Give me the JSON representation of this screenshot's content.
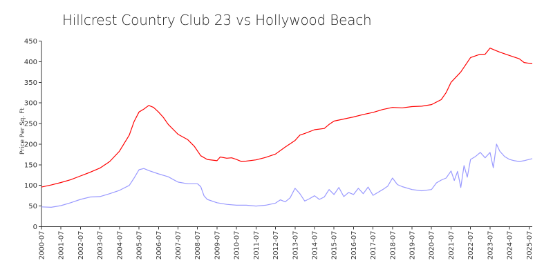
{
  "chart_data": {
    "type": "line",
    "title": "Hillcrest Country Club 23 vs Hollywood Beach",
    "ylabel": "Price Per Sq. Ft",
    "xlabel": "",
    "ylim": [
      0,
      450
    ],
    "yticks": [
      "0",
      "50",
      "100",
      "150",
      "200",
      "250",
      "300",
      "350",
      "400",
      "450"
    ],
    "xlim": [
      "2000-07",
      "2025-09"
    ],
    "xticks": [
      "2000-07",
      "2001-07",
      "2002-07",
      "2003-07",
      "2004-07",
      "2005-07",
      "2006-07",
      "2007-07",
      "2008-07",
      "2009-07",
      "2010-07",
      "2011-07",
      "2012-07",
      "2013-07",
      "2014-07",
      "2015-07",
      "2016-07",
      "2017-07",
      "2018-07",
      "2019-07",
      "2020-07",
      "2021-07",
      "2022-07",
      "2023-07",
      "2024-07",
      "2025-07"
    ],
    "grid": false,
    "legend": "none",
    "series": [
      {
        "color": "#ff0000",
        "points": [
          [
            "2000-07",
            96
          ],
          [
            "2001-01",
            101
          ],
          [
            "2001-07",
            107
          ],
          [
            "2002-01",
            114
          ],
          [
            "2002-07",
            123
          ],
          [
            "2003-01",
            132
          ],
          [
            "2003-07",
            142
          ],
          [
            "2004-01",
            158
          ],
          [
            "2004-07",
            183
          ],
          [
            "2005-01",
            222
          ],
          [
            "2005-04",
            255
          ],
          [
            "2005-07",
            278
          ],
          [
            "2005-10",
            285
          ],
          [
            "2006-01",
            294
          ],
          [
            "2006-04",
            289
          ],
          [
            "2006-07",
            278
          ],
          [
            "2006-10",
            265
          ],
          [
            "2007-01",
            248
          ],
          [
            "2007-07",
            224
          ],
          [
            "2008-01",
            211
          ],
          [
            "2008-05",
            195
          ],
          [
            "2008-09",
            172
          ],
          [
            "2009-01",
            163
          ],
          [
            "2009-07",
            160
          ],
          [
            "2009-09",
            169
          ],
          [
            "2010-01",
            166
          ],
          [
            "2010-04",
            167
          ],
          [
            "2010-07",
            163
          ],
          [
            "2010-10",
            158
          ],
          [
            "2011-01",
            159
          ],
          [
            "2011-07",
            162
          ],
          [
            "2012-01",
            168
          ],
          [
            "2012-07",
            176
          ],
          [
            "2013-01",
            193
          ],
          [
            "2013-07",
            209
          ],
          [
            "2013-10",
            222
          ],
          [
            "2014-01",
            226
          ],
          [
            "2014-07",
            235
          ],
          [
            "2015-01",
            238
          ],
          [
            "2015-04",
            248
          ],
          [
            "2015-07",
            256
          ],
          [
            "2016-01",
            261
          ],
          [
            "2016-07",
            266
          ],
          [
            "2017-01",
            272
          ],
          [
            "2017-07",
            277
          ],
          [
            "2018-01",
            284
          ],
          [
            "2018-07",
            289
          ],
          [
            "2019-01",
            288
          ],
          [
            "2019-07",
            291
          ],
          [
            "2020-01",
            292
          ],
          [
            "2020-07",
            296
          ],
          [
            "2021-01",
            308
          ],
          [
            "2021-04",
            325
          ],
          [
            "2021-07",
            350
          ],
          [
            "2022-01",
            375
          ],
          [
            "2022-07",
            410
          ],
          [
            "2023-01",
            418
          ],
          [
            "2023-04",
            418
          ],
          [
            "2023-07",
            433
          ],
          [
            "2023-10",
            428
          ],
          [
            "2024-01",
            423
          ],
          [
            "2024-07",
            415
          ],
          [
            "2025-01",
            407
          ],
          [
            "2025-04",
            398
          ],
          [
            "2025-09",
            395
          ]
        ]
      },
      {
        "color": "#9999ff",
        "points": [
          [
            "2000-07",
            48
          ],
          [
            "2001-01",
            47
          ],
          [
            "2001-07",
            51
          ],
          [
            "2002-01",
            58
          ],
          [
            "2002-07",
            66
          ],
          [
            "2003-01",
            72
          ],
          [
            "2003-07",
            73
          ],
          [
            "2004-01",
            80
          ],
          [
            "2004-07",
            88
          ],
          [
            "2005-01",
            100
          ],
          [
            "2005-04",
            118
          ],
          [
            "2005-07",
            138
          ],
          [
            "2005-10",
            141
          ],
          [
            "2006-01",
            136
          ],
          [
            "2006-07",
            128
          ],
          [
            "2007-01",
            121
          ],
          [
            "2007-07",
            108
          ],
          [
            "2008-01",
            104
          ],
          [
            "2008-07",
            104
          ],
          [
            "2008-09",
            97
          ],
          [
            "2008-11",
            75
          ],
          [
            "2009-01",
            66
          ],
          [
            "2009-07",
            58
          ],
          [
            "2010-01",
            54
          ],
          [
            "2010-07",
            52
          ],
          [
            "2011-01",
            52
          ],
          [
            "2011-07",
            50
          ],
          [
            "2012-01",
            52
          ],
          [
            "2012-07",
            57
          ],
          [
            "2012-10",
            65
          ],
          [
            "2013-01",
            60
          ],
          [
            "2013-04",
            70
          ],
          [
            "2013-07",
            93
          ],
          [
            "2013-10",
            80
          ],
          [
            "2014-01",
            62
          ],
          [
            "2014-04",
            68
          ],
          [
            "2014-07",
            75
          ],
          [
            "2014-10",
            66
          ],
          [
            "2015-01",
            72
          ],
          [
            "2015-04",
            90
          ],
          [
            "2015-07",
            78
          ],
          [
            "2015-10",
            95
          ],
          [
            "2016-01",
            73
          ],
          [
            "2016-04",
            83
          ],
          [
            "2016-07",
            78
          ],
          [
            "2016-10",
            93
          ],
          [
            "2017-01",
            80
          ],
          [
            "2017-04",
            96
          ],
          [
            "2017-07",
            76
          ],
          [
            "2017-10",
            83
          ],
          [
            "2018-01",
            90
          ],
          [
            "2018-04",
            98
          ],
          [
            "2018-07",
            118
          ],
          [
            "2018-10",
            102
          ],
          [
            "2019-01",
            97
          ],
          [
            "2019-07",
            90
          ],
          [
            "2020-01",
            87
          ],
          [
            "2020-07",
            90
          ],
          [
            "2020-10",
            106
          ],
          [
            "2021-01",
            113
          ],
          [
            "2021-04",
            118
          ],
          [
            "2021-07",
            135
          ],
          [
            "2021-09",
            112
          ],
          [
            "2021-11",
            134
          ],
          [
            "2022-01",
            95
          ],
          [
            "2022-03",
            148
          ],
          [
            "2022-05",
            120
          ],
          [
            "2022-07",
            163
          ],
          [
            "2022-10",
            170
          ],
          [
            "2023-01",
            180
          ],
          [
            "2023-04",
            167
          ],
          [
            "2023-07",
            180
          ],
          [
            "2023-09",
            143
          ],
          [
            "2023-11",
            200
          ],
          [
            "2024-01",
            183
          ],
          [
            "2024-04",
            170
          ],
          [
            "2024-07",
            163
          ],
          [
            "2024-10",
            160
          ],
          [
            "2025-01",
            158
          ],
          [
            "2025-04",
            160
          ],
          [
            "2025-09",
            165
          ]
        ]
      }
    ]
  }
}
